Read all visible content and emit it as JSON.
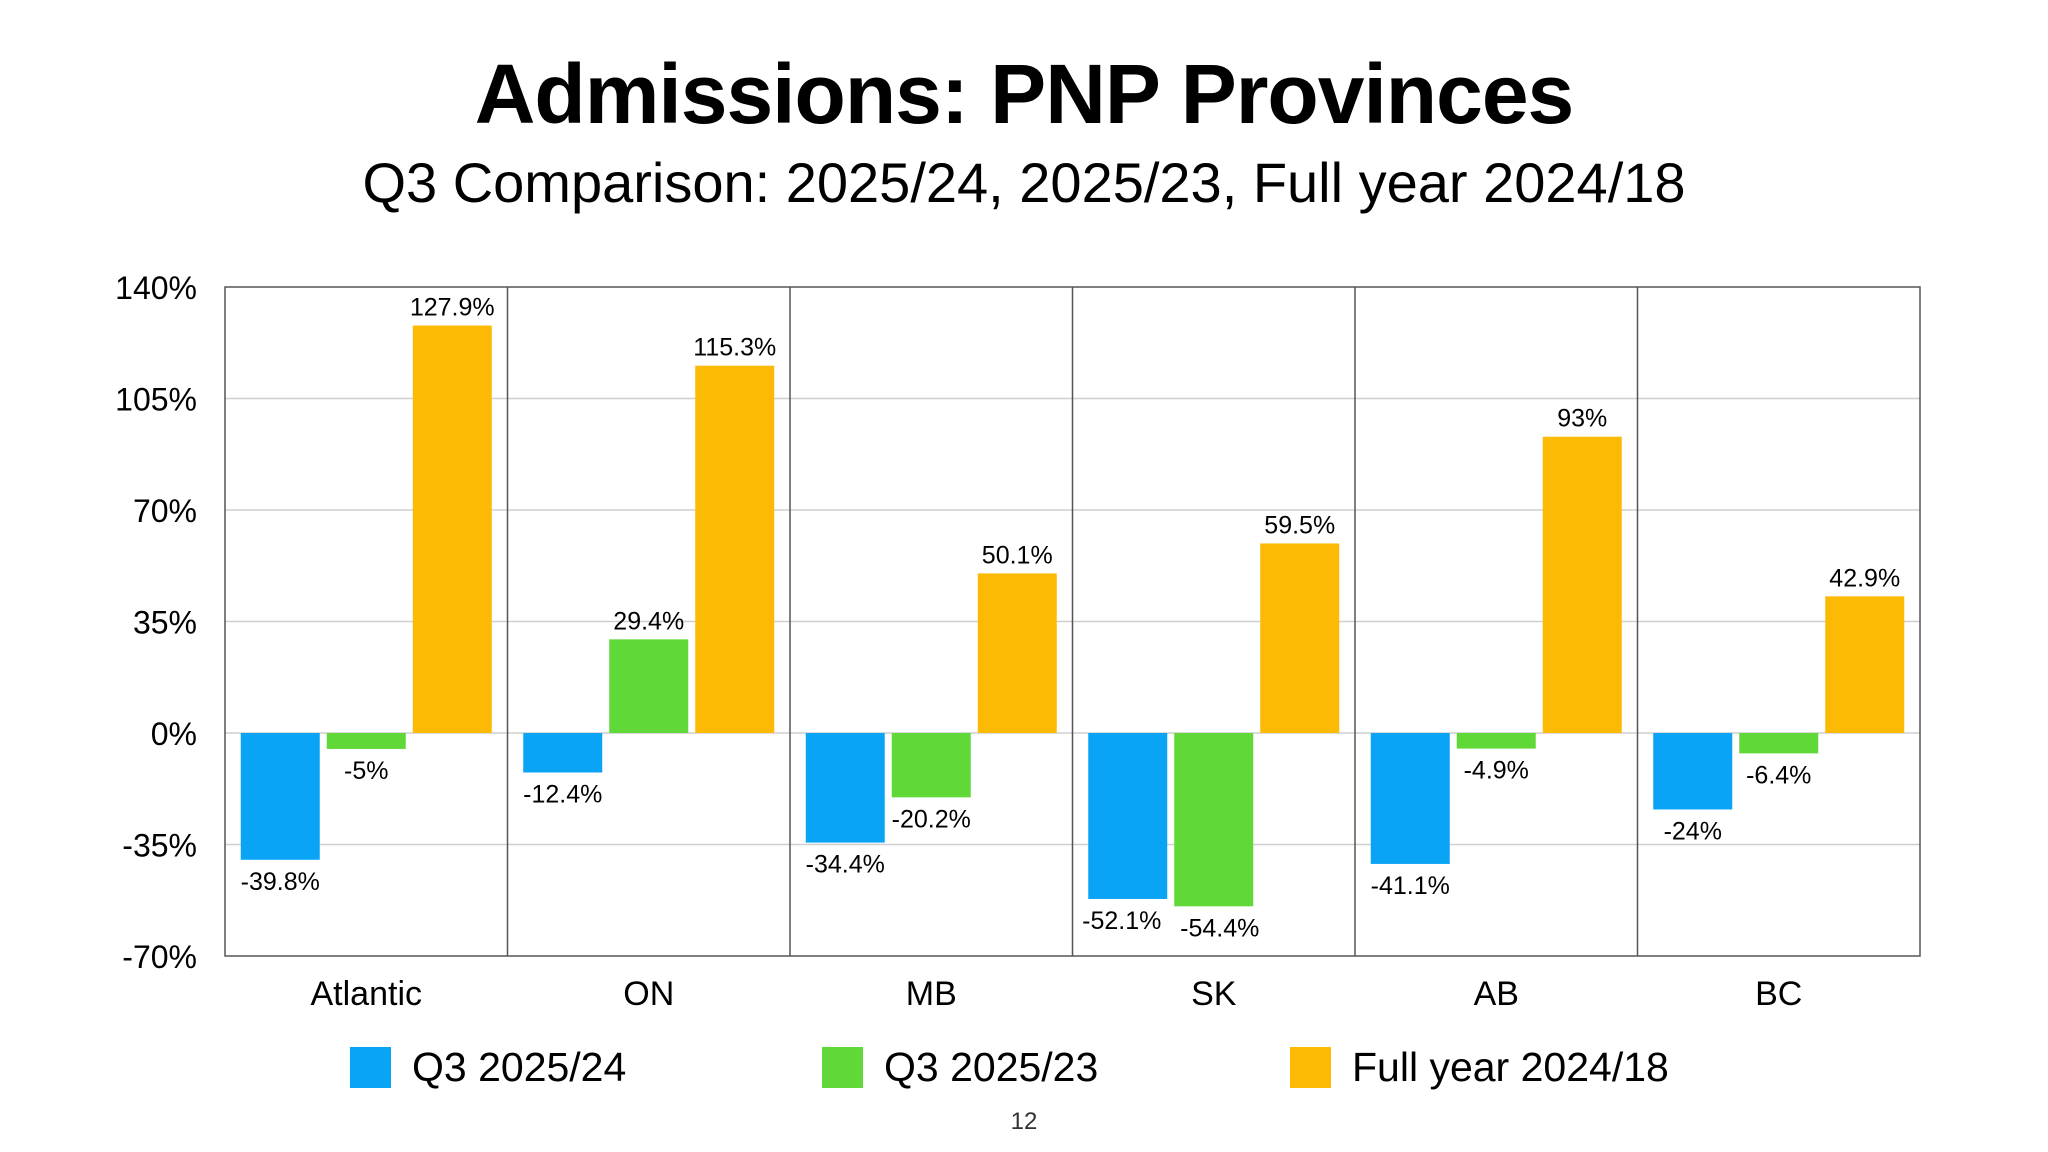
{
  "slide": {
    "title": "Admissions: PNP Provinces",
    "subtitle": "Q3 Comparison: 2025/24, 2025/23, Full year 2024/18",
    "page_number": "12"
  },
  "chart_data": {
    "type": "bar",
    "title": "",
    "xlabel": "",
    "ylabel": "",
    "categories": [
      "Atlantic",
      "ON",
      "MB",
      "SK",
      "AB",
      "BC"
    ],
    "series": [
      {
        "name": "Q3 2025/24",
        "color": "#0AA4F7",
        "values": [
          -39.8,
          -12.4,
          -34.4,
          -52.1,
          -41.1,
          -24
        ],
        "labels": [
          "-39.8%",
          "-12.4%",
          "-34.4%",
          "-52.1%",
          "-41.1%",
          "-24%"
        ]
      },
      {
        "name": "Q3 2025/23",
        "color": "#60D838",
        "values": [
          -5,
          29.4,
          -20.2,
          -54.4,
          -4.9,
          -6.4
        ],
        "labels": [
          "-5%",
          "29.4%",
          "-20.2%",
          "-54.4%",
          "-4.9%",
          "-6.4%"
        ]
      },
      {
        "name": "Full year 2024/18",
        "color": "#FCBA04",
        "values": [
          127.9,
          115.3,
          50.1,
          59.5,
          93,
          42.9
        ],
        "labels": [
          "127.9%",
          "115.3%",
          "50.1%",
          "59.5%",
          "93%",
          "42.9%"
        ]
      }
    ],
    "ylim": [
      -70,
      140
    ],
    "yticks": [
      140,
      105,
      70,
      35,
      0,
      -35,
      -70
    ],
    "ytick_labels": [
      "140%",
      "105%",
      "70%",
      "35%",
      "0%",
      "-35%",
      "-70%"
    ],
    "grid": true,
    "category_separators": true,
    "legend_position": "bottom"
  }
}
